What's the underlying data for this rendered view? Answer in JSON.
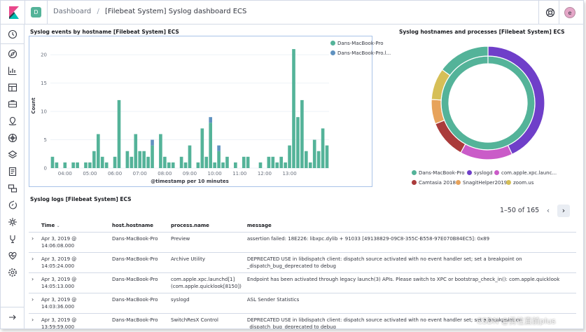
{
  "header": {
    "space_initial": "D",
    "breadcrumb_root": "Dashboard",
    "breadcrumb_separator": "/",
    "breadcrumb_current": "[Filebeat System] Syslog dashboard ECS",
    "avatar_initial": "e"
  },
  "sidenav": {
    "items": [
      "clock-icon",
      "compass-icon",
      "visualize-icon",
      "dashboard-icon",
      "canvas-icon",
      "maps-icon",
      "ml-icon",
      "infra-icon",
      "logs-icon",
      "apm-icon",
      "uptime-icon",
      "siem-icon",
      "devtools-icon",
      "monitoring-icon",
      "management-icon"
    ],
    "collapse_icon": "arrow-right-icon"
  },
  "panels": {
    "events_title": "Syslog events by hostname [Filebeat System] ECS",
    "hosts_title": "Syslog hostnames and processes [Filebeat System] ECS",
    "logs_title": "Syslog logs [Filebeat System] ECS"
  },
  "chart_data": [
    {
      "type": "bar",
      "stacked": true,
      "title": "Syslog events by hostname [Filebeat System] ECS",
      "xlabel": "@timestamp per 10 minutes",
      "ylabel": "Count",
      "ylim": [
        0,
        22
      ],
      "yticks": [
        0,
        5,
        10,
        15,
        20
      ],
      "xticks": [
        "04:00",
        "05:00",
        "06:00",
        "07:00",
        "08:00",
        "09:00",
        "10:00",
        "11:00",
        "12:00",
        "13:00"
      ],
      "legend_position": "top-right",
      "colors": [
        "#54b399",
        "#6092c0"
      ],
      "series": [
        {
          "name": "Dans-MacBook-Pro",
          "values": [
            2,
            1,
            0,
            1,
            0,
            1,
            1,
            0,
            1,
            1,
            3,
            6,
            2,
            1,
            0,
            2,
            12,
            0,
            3,
            2,
            6,
            3,
            3,
            2,
            4,
            0,
            6,
            2,
            1,
            1,
            0,
            2,
            1,
            4,
            0,
            1,
            7,
            2,
            8,
            1,
            3,
            1,
            2,
            0,
            1,
            0,
            2,
            2,
            0,
            0,
            1,
            0,
            2,
            2,
            1,
            2,
            1,
            4,
            21,
            9,
            12,
            3,
            1,
            5,
            3,
            7,
            4
          ]
        },
        {
          "name": "Dans-MacBook-Pro.l...",
          "values": [
            0,
            0,
            0,
            0,
            0,
            0,
            0,
            0,
            0,
            0,
            0,
            0,
            0,
            0,
            0,
            0,
            0,
            0,
            0,
            0,
            0,
            0,
            0,
            0,
            1,
            0,
            0,
            0,
            0,
            0,
            0,
            0,
            0,
            0,
            0,
            0,
            0,
            0,
            1,
            0,
            1,
            0,
            0,
            0,
            0,
            0,
            0,
            0,
            0,
            0,
            0,
            0,
            0,
            0,
            0,
            0,
            0,
            0,
            0,
            0,
            0,
            0,
            0,
            0,
            0,
            0,
            0
          ]
        }
      ]
    },
    {
      "type": "pie",
      "title": "Syslog hostnames and processes [Filebeat System] ECS",
      "legend_position": "bottom",
      "inner_ring": [
        {
          "label": "Dans-MacBook-Pro",
          "value": 100,
          "color": "#54b399"
        }
      ],
      "outer_ring": [
        {
          "label": "syslogd",
          "value": 43,
          "color": "#6f3fc9"
        },
        {
          "label": "com.apple.xpc.launc...",
          "value": 15,
          "color": "#ca5bc8"
        },
        {
          "label": "Camtasia 2018",
          "value": 11,
          "color": "#aa3b3b"
        },
        {
          "label": "SnagitHelper2019",
          "value": 7,
          "color": "#e7a35c"
        },
        {
          "label": "zoom.us",
          "value": 9,
          "color": "#d6bf57"
        },
        {
          "label": "",
          "value": 15,
          "color": "#54b399"
        }
      ]
    }
  ],
  "donut_legend": [
    {
      "label": "Dans-MacBook-Pro",
      "color": "#54b399"
    },
    {
      "label": "syslogd",
      "color": "#6f3fc9"
    },
    {
      "label": "com.apple.xpc.launc...",
      "color": "#ca5bc8"
    },
    {
      "label": "Camtasia 2018",
      "color": "#aa3b3b"
    },
    {
      "label": "SnagitHelper2019",
      "color": "#e7a35c"
    },
    {
      "label": "zoom.us",
      "color": "#d6bf57"
    }
  ],
  "logs": {
    "pagination": "1–50 of 165",
    "columns": [
      "Time",
      "host.hostname",
      "process.name",
      "message"
    ],
    "rows": [
      {
        "time": "Apr 3, 2019 @ 14:06:08.000",
        "host": "Dans-MacBook-Pro",
        "process": "Preview",
        "message": "assertion failed: 18E226: libxpc.dylib + 91033 [49138829-09C8-355C-B558-97E070B84EC5]: 0x89"
      },
      {
        "time": "Apr 3, 2019 @ 14:05:24.000",
        "host": "Dans-MacBook-Pro",
        "process": "Archive Utility",
        "message": "DEPRECATED USE in libdispatch client: dispatch source activated with no event handler set; set a breakpoint on _dispatch_bug_deprecated to debug"
      },
      {
        "time": "Apr 3, 2019 @ 14:05:13.000",
        "host": "Dans-MacBook-Pro",
        "process": "com.apple.xpc.launchd[1] (com.apple.quicklook[8150])",
        "message": "Endpoint has been activated through legacy launch(3) APIs. Please switch to XPC or bootstrap_check_in(): com.apple.quicklook"
      },
      {
        "time": "Apr 3, 2019 @ 14:03:36.000",
        "host": "Dans-MacBook-Pro",
        "process": "syslogd",
        "message": "ASL Sender Statistics"
      },
      {
        "time": "Apr 3, 2019 @ 13:59:59.000",
        "host": "Dans-MacBook-Pro",
        "process": "SwitchResX Control",
        "message": "DEPRECATED USE in libdispatch client: dispatch source activated with no event handler set; set a breakpoint on _dispatch_bug_deprecated to debug"
      }
    ]
  },
  "watermark": "CSDN @勇往直前plus"
}
